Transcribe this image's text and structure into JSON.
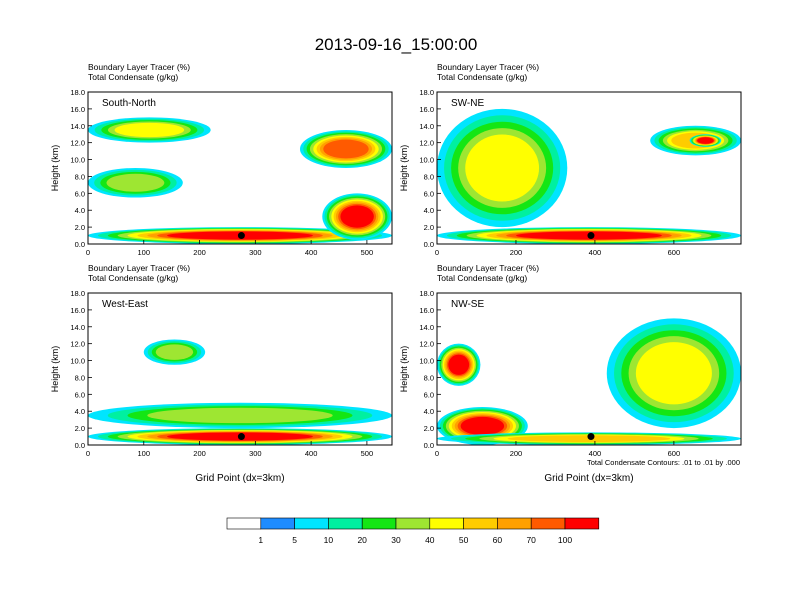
{
  "title": "2013-09-16_15:00:00",
  "footnote": "Total Condensate Contours: .01 to .01 by .000",
  "chart_data": [
    {
      "type": "heatmap",
      "panel_label": "South-North",
      "subtitle_line1": "Boundary Layer Tracer (%)",
      "subtitle_line2": "Total Condensate (g/kg)",
      "ylabel": "Height (km)",
      "xlabel": "",
      "xlim": [
        0,
        545
      ],
      "ylim": [
        0,
        18
      ],
      "xticks": [
        0,
        100,
        200,
        300,
        400,
        500
      ],
      "xtick_labels": [
        "0",
        "100",
        "200",
        "300",
        "400",
        "500"
      ],
      "yticks": [
        0,
        2,
        4,
        6,
        8,
        10,
        12,
        14,
        16,
        18
      ],
      "ytick_labels": [
        "0.0",
        "2.0",
        "4.0",
        "6.0",
        "8.0",
        "10.0",
        "12.0",
        "14.0",
        "16.0",
        "18.0"
      ],
      "marker": {
        "x": 275,
        "y": 1.0
      },
      "features": [
        {
          "x": [
            0,
            220
          ],
          "y": [
            12,
            15
          ],
          "level": 30
        },
        {
          "x": [
            0,
            170
          ],
          "y": [
            5.5,
            9
          ],
          "level": 20
        },
        {
          "x": [
            0,
            545
          ],
          "y": [
            0,
            2
          ],
          "level": 70
        },
        {
          "x": [
            380,
            545
          ],
          "y": [
            9,
            13.5
          ],
          "level": 60
        },
        {
          "x": [
            420,
            545
          ],
          "y": [
            0.5,
            6
          ],
          "level": 70
        }
      ]
    },
    {
      "type": "heatmap",
      "panel_label": "SW-NE",
      "subtitle_line1": "Boundary Layer Tracer (%)",
      "subtitle_line2": "Total Condensate (g/kg)",
      "ylabel": "Height (km)",
      "xlabel": "",
      "xlim": [
        0,
        770
      ],
      "ylim": [
        0,
        18
      ],
      "xticks": [
        0,
        200,
        400,
        600
      ],
      "xtick_labels": [
        "0",
        "200",
        "400",
        "600"
      ],
      "yticks": [
        0,
        2,
        4,
        6,
        8,
        10,
        12,
        14,
        16,
        18
      ],
      "ytick_labels": [
        "0.0",
        "2.0",
        "4.0",
        "6.0",
        "8.0",
        "10.0",
        "12.0",
        "14.0",
        "16.0",
        "18.0"
      ],
      "marker": {
        "x": 390,
        "y": 1.0
      },
      "features": [
        {
          "x": [
            0,
            330
          ],
          "y": [
            2,
            16
          ],
          "level": 30
        },
        {
          "x": [
            0,
            770
          ],
          "y": [
            0,
            2
          ],
          "level": 70
        },
        {
          "x": [
            540,
            770
          ],
          "y": [
            10.5,
            14
          ],
          "level": 40
        },
        {
          "x": [
            640,
            720
          ],
          "y": [
            11.5,
            13
          ],
          "level": 100
        }
      ]
    },
    {
      "type": "heatmap",
      "panel_label": "West-East",
      "subtitle_line1": "Boundary Layer Tracer (%)",
      "subtitle_line2": "Total Condensate (g/kg)",
      "ylabel": "Height (km)",
      "xlabel": "Grid Point (dx=3km)",
      "xlim": [
        0,
        545
      ],
      "ylim": [
        0,
        18
      ],
      "xticks": [
        0,
        100,
        200,
        300,
        400,
        500
      ],
      "xtick_labels": [
        "0",
        "100",
        "200",
        "300",
        "400",
        "500"
      ],
      "yticks": [
        0,
        2,
        4,
        6,
        8,
        10,
        12,
        14,
        16,
        18
      ],
      "ytick_labels": [
        "0.0",
        "2.0",
        "4.0",
        "6.0",
        "8.0",
        "10.0",
        "12.0",
        "14.0",
        "16.0",
        "18.0"
      ],
      "marker": {
        "x": 275,
        "y": 1.0
      },
      "features": [
        {
          "x": [
            100,
            210
          ],
          "y": [
            9.5,
            12.5
          ],
          "level": 20
        },
        {
          "x": [
            0,
            545
          ],
          "y": [
            2,
            5
          ],
          "level": 20
        },
        {
          "x": [
            0,
            545
          ],
          "y": [
            0,
            2
          ],
          "level": 70
        }
      ]
    },
    {
      "type": "heatmap",
      "panel_label": "NW-SE",
      "subtitle_line1": "Boundary Layer Tracer (%)",
      "subtitle_line2": "Total Condensate (g/kg)",
      "ylabel": "Height (km)",
      "xlabel": "Grid Point (dx=3km)",
      "xlim": [
        0,
        770
      ],
      "ylim": [
        0,
        18
      ],
      "xticks": [
        0,
        200,
        400,
        600
      ],
      "xtick_labels": [
        "0",
        "200",
        "400",
        "600"
      ],
      "yticks": [
        0,
        2,
        4,
        6,
        8,
        10,
        12,
        14,
        16,
        18
      ],
      "ytick_labels": [
        "0.0",
        "2.0",
        "4.0",
        "6.0",
        "8.0",
        "10.0",
        "12.0",
        "14.0",
        "16.0",
        "18.0"
      ],
      "marker": {
        "x": 390,
        "y": 1.0
      },
      "features": [
        {
          "x": [
            0,
            110
          ],
          "y": [
            7,
            12
          ],
          "level": 70
        },
        {
          "x": [
            0,
            230
          ],
          "y": [
            0,
            4.5
          ],
          "level": 70
        },
        {
          "x": [
            430,
            770
          ],
          "y": [
            2,
            15
          ],
          "level": 30
        },
        {
          "x": [
            0,
            770
          ],
          "y": [
            0,
            1.5
          ],
          "level": 40
        }
      ]
    }
  ],
  "colorbar": {
    "labels": [
      "1",
      "5",
      "10",
      "20",
      "30",
      "40",
      "50",
      "60",
      "70",
      "100"
    ],
    "colors": [
      "#ffffff",
      "#1e8cff",
      "#00e5ff",
      "#00f0a0",
      "#14e614",
      "#9ee632",
      "#ffff00",
      "#ffcc00",
      "#ffa000",
      "#ff5a00",
      "#ff0000"
    ]
  }
}
